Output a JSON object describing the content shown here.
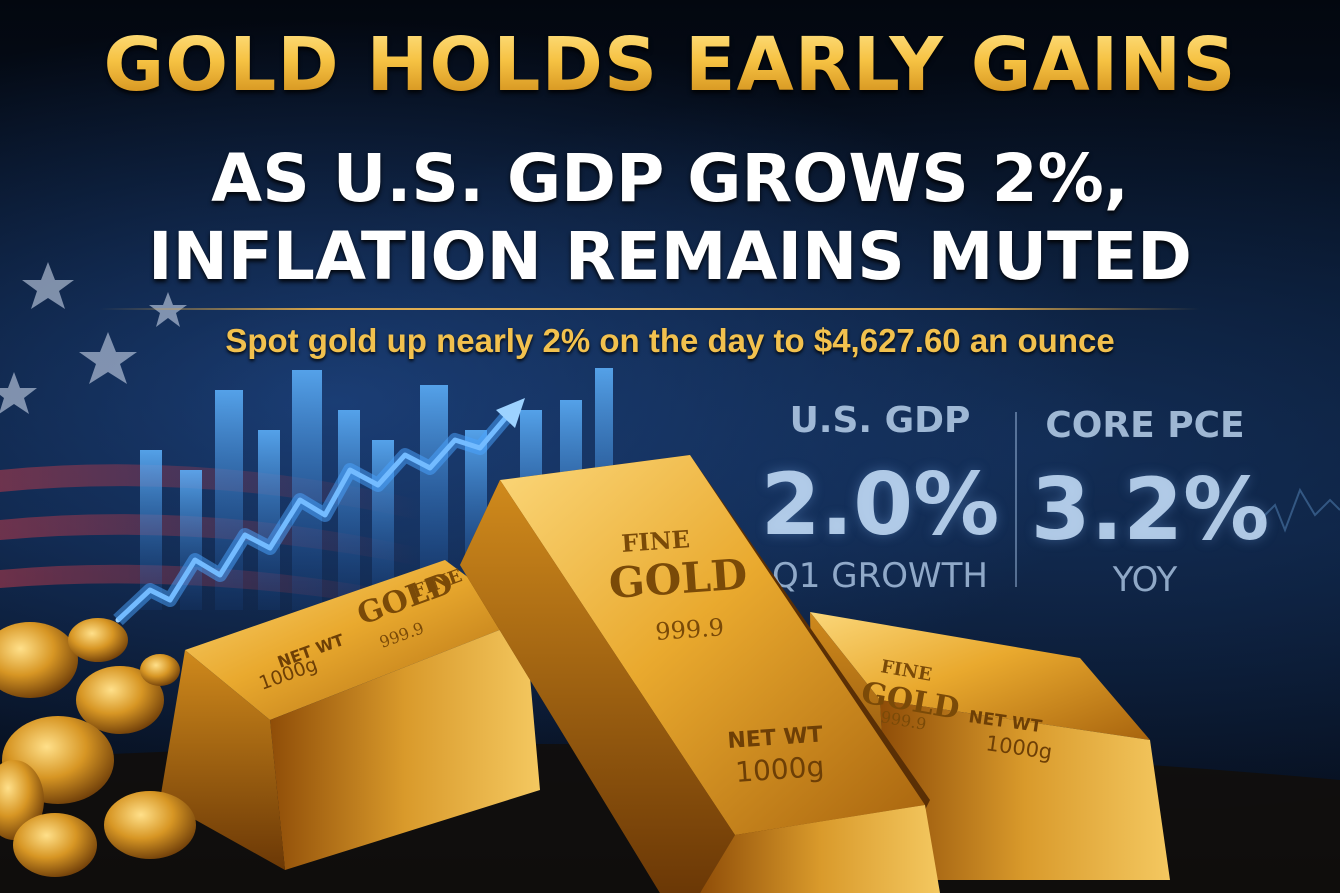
{
  "headline": {
    "line1": "GOLD HOLDS EARLY GAINS",
    "line2": "AS U.S. GDP GROWS 2%,",
    "line3": "INFLATION REMAINS MUTED"
  },
  "subheadline": "Spot gold up nearly 2% on the day to $4,627.60 an ounce",
  "stats": {
    "gdp": {
      "label": "U.S. GDP",
      "value": "2.0%",
      "sub": "Q1 GROWTH"
    },
    "pce": {
      "label": "CORE PCE",
      "value": "3.2%",
      "sub": "YOY"
    }
  },
  "bars": {
    "center": {
      "line1": "FINE",
      "line2": "GOLD",
      "line3": "999.9",
      "line4": "NET WT",
      "line5": "1000g"
    },
    "left": {
      "line1": "FINE",
      "line2": "GOLD",
      "line3": "999.9",
      "line4": "NET WT",
      "line5": "1000g"
    },
    "right": {
      "line1": "FINE",
      "line2": "GOLD",
      "line3": "999.9",
      "line4": "NET WT",
      "line5": "1000g"
    }
  },
  "colors": {
    "gold": "#f2b23a",
    "headline_white": "#ffffff",
    "chart_blue": "#4aa3ff",
    "background_navy": "#071428"
  }
}
